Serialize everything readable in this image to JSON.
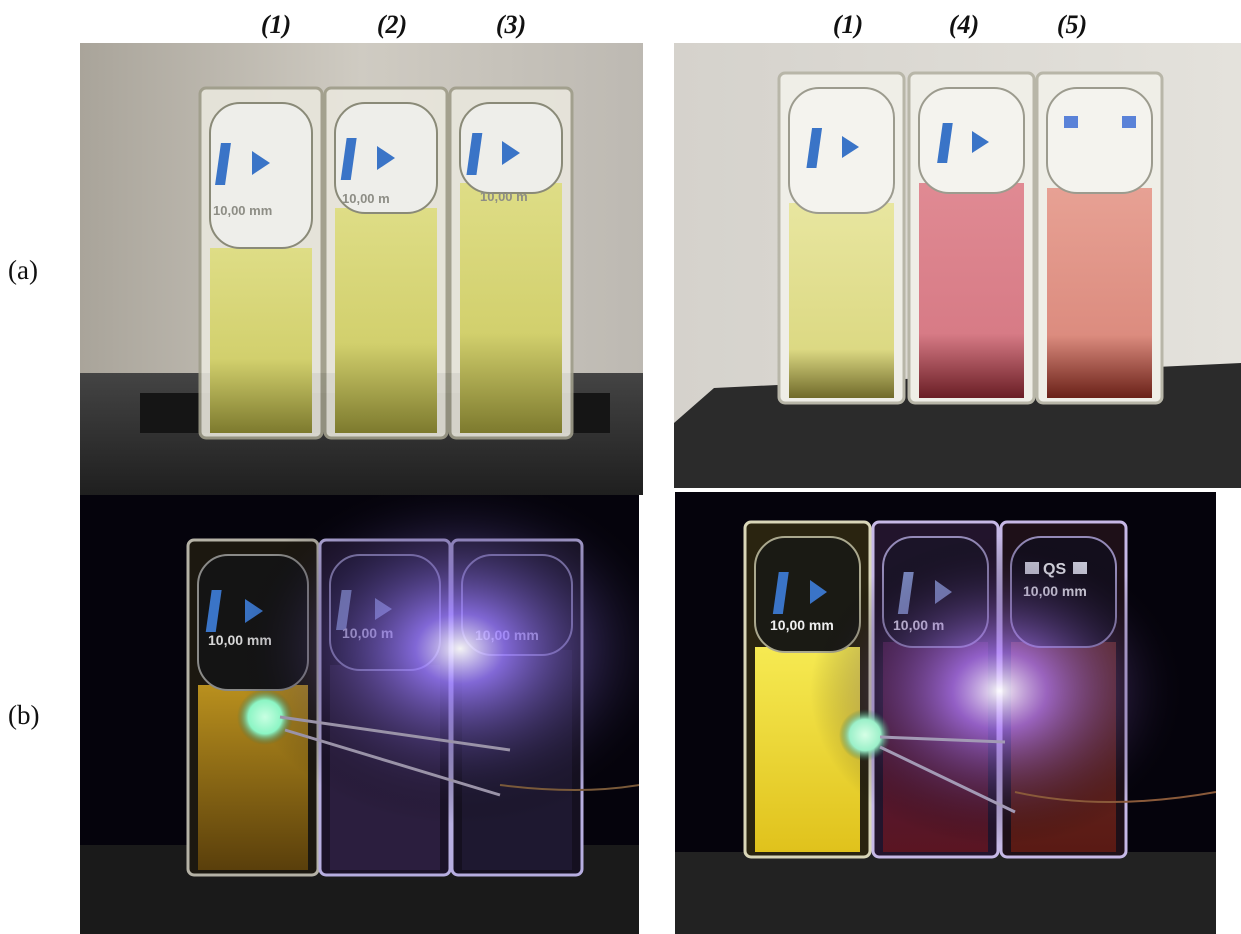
{
  "column_labels_left": [
    "(1)",
    "(2)",
    "(3)"
  ],
  "column_labels_right": [
    "(1)",
    "(4)",
    "(5)"
  ],
  "row_labels": [
    "(a)",
    "(b)"
  ],
  "cuvette_text": {
    "path_length": "10,00 mm",
    "path_length_cut": "10,00 m",
    "qs": "QS"
  },
  "colors": {
    "yellow_solution": "#d9d97a",
    "red_solution": "#d77b86",
    "orange_red_solution": "#dc8c7f",
    "uv_glow": "#7a55ff",
    "green_led": "#8cf5c4",
    "bright_yellow_emission": "#f2e23a"
  }
}
